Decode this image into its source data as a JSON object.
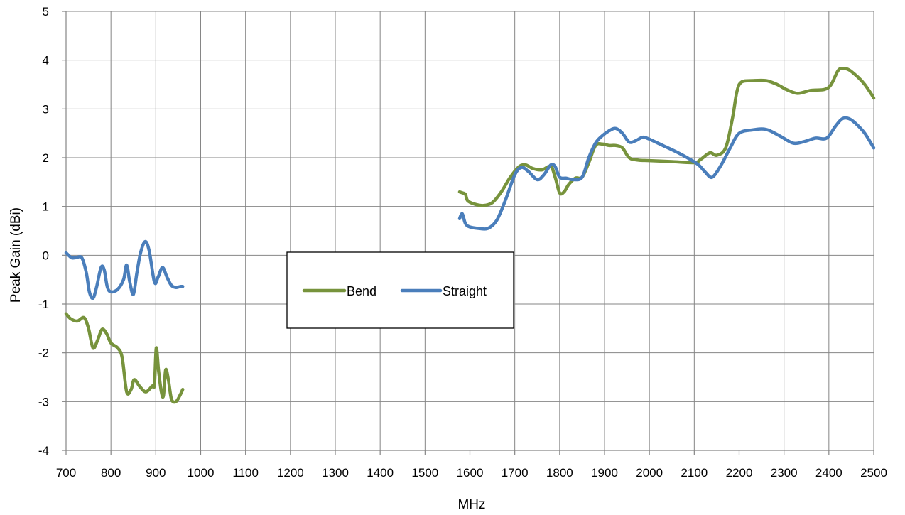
{
  "chart_data": {
    "type": "line",
    "title": "",
    "xlabel": "MHz",
    "ylabel": "Peak Gain (dBi)",
    "xlim": [
      700,
      2500
    ],
    "ylim": [
      -4,
      5
    ],
    "xticks": [
      700,
      800,
      900,
      1000,
      1100,
      1200,
      1300,
      1400,
      1500,
      1600,
      1700,
      1800,
      1900,
      2000,
      2100,
      2200,
      2300,
      2400,
      2500
    ],
    "yticks": [
      -4,
      -3,
      -2,
      -1,
      0,
      1,
      2,
      3,
      4,
      5
    ],
    "grid": true,
    "legend": "center",
    "series": [
      {
        "name": "Bend",
        "color": "#77933c",
        "segments": [
          [
            [
              700,
              -1.2
            ],
            [
              710,
              -1.3
            ],
            [
              725,
              -1.35
            ],
            [
              740,
              -1.28
            ],
            [
              750,
              -1.5
            ],
            [
              760,
              -1.9
            ],
            [
              770,
              -1.75
            ],
            [
              780,
              -1.52
            ],
            [
              790,
              -1.6
            ],
            [
              800,
              -1.8
            ],
            [
              815,
              -1.9
            ],
            [
              825,
              -2.1
            ],
            [
              835,
              -2.8
            ],
            [
              845,
              -2.75
            ],
            [
              852,
              -2.55
            ],
            [
              865,
              -2.7
            ],
            [
              878,
              -2.8
            ],
            [
              892,
              -2.68
            ],
            [
              897,
              -2.65
            ],
            [
              901,
              -1.9
            ],
            [
              906,
              -2.35
            ],
            [
              912,
              -2.78
            ],
            [
              917,
              -2.88
            ],
            [
              922,
              -2.35
            ],
            [
              928,
              -2.55
            ],
            [
              935,
              -2.95
            ],
            [
              945,
              -3.0
            ],
            [
              955,
              -2.85
            ],
            [
              960,
              -2.75
            ]
          ],
          [
            [
              1577,
              1.3
            ],
            [
              1583,
              1.28
            ],
            [
              1590,
              1.25
            ],
            [
              1595,
              1.12
            ],
            [
              1610,
              1.05
            ],
            [
              1630,
              1.02
            ],
            [
              1650,
              1.08
            ],
            [
              1670,
              1.3
            ],
            [
              1690,
              1.6
            ],
            [
              1710,
              1.82
            ],
            [
              1725,
              1.85
            ],
            [
              1740,
              1.78
            ],
            [
              1760,
              1.75
            ],
            [
              1780,
              1.82
            ],
            [
              1790,
              1.6
            ],
            [
              1800,
              1.28
            ],
            [
              1810,
              1.3
            ],
            [
              1820,
              1.45
            ],
            [
              1835,
              1.58
            ],
            [
              1850,
              1.6
            ],
            [
              1865,
              1.9
            ],
            [
              1880,
              2.25
            ],
            [
              1895,
              2.28
            ],
            [
              1910,
              2.25
            ],
            [
              1925,
              2.25
            ],
            [
              1940,
              2.2
            ],
            [
              1955,
              2.0
            ],
            [
              1975,
              1.95
            ],
            [
              2000,
              1.94
            ],
            [
              2050,
              1.92
            ],
            [
              2100,
              1.9
            ],
            [
              2115,
              1.97
            ],
            [
              2135,
              2.1
            ],
            [
              2150,
              2.05
            ],
            [
              2170,
              2.2
            ],
            [
              2185,
              2.8
            ],
            [
              2195,
              3.35
            ],
            [
              2205,
              3.55
            ],
            [
              2230,
              3.58
            ],
            [
              2260,
              3.58
            ],
            [
              2285,
              3.5
            ],
            [
              2305,
              3.4
            ],
            [
              2330,
              3.32
            ],
            [
              2360,
              3.38
            ],
            [
              2390,
              3.4
            ],
            [
              2405,
              3.5
            ],
            [
              2420,
              3.78
            ],
            [
              2430,
              3.83
            ],
            [
              2445,
              3.8
            ],
            [
              2465,
              3.65
            ],
            [
              2480,
              3.5
            ],
            [
              2495,
              3.3
            ],
            [
              2500,
              3.22
            ]
          ]
        ]
      },
      {
        "name": "Straight",
        "color": "#4a7ebb",
        "segments": [
          [
            [
              700,
              0.05
            ],
            [
              712,
              -0.05
            ],
            [
              722,
              -0.05
            ],
            [
              735,
              -0.05
            ],
            [
              745,
              -0.35
            ],
            [
              752,
              -0.75
            ],
            [
              760,
              -0.88
            ],
            [
              768,
              -0.65
            ],
            [
              778,
              -0.25
            ],
            [
              785,
              -0.3
            ],
            [
              792,
              -0.65
            ],
            [
              800,
              -0.75
            ],
            [
              815,
              -0.7
            ],
            [
              828,
              -0.5
            ],
            [
              835,
              -0.2
            ],
            [
              842,
              -0.55
            ],
            [
              850,
              -0.8
            ],
            [
              858,
              -0.35
            ],
            [
              866,
              0.05
            ],
            [
              876,
              0.28
            ],
            [
              885,
              0.1
            ],
            [
              897,
              -0.55
            ],
            [
              905,
              -0.45
            ],
            [
              915,
              -0.25
            ],
            [
              925,
              -0.45
            ],
            [
              935,
              -0.62
            ],
            [
              945,
              -0.66
            ],
            [
              955,
              -0.64
            ],
            [
              960,
              -0.64
            ]
          ],
          [
            [
              1577,
              0.75
            ],
            [
              1583,
              0.85
            ],
            [
              1590,
              0.65
            ],
            [
              1600,
              0.58
            ],
            [
              1620,
              0.55
            ],
            [
              1640,
              0.55
            ],
            [
              1660,
              0.72
            ],
            [
              1680,
              1.15
            ],
            [
              1700,
              1.65
            ],
            [
              1715,
              1.8
            ],
            [
              1730,
              1.72
            ],
            [
              1750,
              1.55
            ],
            [
              1765,
              1.65
            ],
            [
              1780,
              1.85
            ],
            [
              1790,
              1.82
            ],
            [
              1800,
              1.6
            ],
            [
              1815,
              1.58
            ],
            [
              1830,
              1.55
            ],
            [
              1850,
              1.6
            ],
            [
              1865,
              2.0
            ],
            [
              1880,
              2.3
            ],
            [
              1895,
              2.45
            ],
            [
              1910,
              2.55
            ],
            [
              1925,
              2.6
            ],
            [
              1940,
              2.5
            ],
            [
              1955,
              2.32
            ],
            [
              1970,
              2.35
            ],
            [
              1985,
              2.42
            ],
            [
              2000,
              2.38
            ],
            [
              2030,
              2.25
            ],
            [
              2060,
              2.12
            ],
            [
              2090,
              1.97
            ],
            [
              2110,
              1.85
            ],
            [
              2125,
              1.7
            ],
            [
              2140,
              1.6
            ],
            [
              2160,
              1.85
            ],
            [
              2180,
              2.2
            ],
            [
              2200,
              2.5
            ],
            [
              2230,
              2.57
            ],
            [
              2260,
              2.58
            ],
            [
              2290,
              2.45
            ],
            [
              2320,
              2.3
            ],
            [
              2345,
              2.33
            ],
            [
              2370,
              2.4
            ],
            [
              2395,
              2.4
            ],
            [
              2415,
              2.65
            ],
            [
              2430,
              2.8
            ],
            [
              2445,
              2.8
            ],
            [
              2460,
              2.7
            ],
            [
              2480,
              2.5
            ],
            [
              2500,
              2.2
            ]
          ]
        ]
      }
    ]
  }
}
